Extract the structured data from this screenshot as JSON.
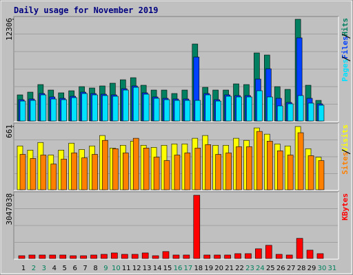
{
  "chart_data": [
    {
      "type": "bar",
      "title": "Daily usage for November 2019",
      "ylim": [
        0,
        12306
      ],
      "yticks": [
        12306
      ],
      "grid": true,
      "series": [
        {
          "name": "Hits",
          "color": "#008060",
          "values": [
            3160,
            3492,
            4407,
            3742,
            3409,
            3659,
            4157,
            3991,
            4241,
            4573,
            4989,
            5238,
            4324,
            3742,
            3742,
            3326,
            3742,
            9313,
            4074,
            3742,
            3742,
            4490,
            4407,
            8232,
            7982,
            4157,
            3825,
            12306,
            4324,
            2494,
            null
          ]
        },
        {
          "name": "Files",
          "color": "#0040ff",
          "values": [
            2578,
            2661,
            3326,
            2910,
            2744,
            2993,
            3492,
            3326,
            3243,
            3160,
            3908,
            4241,
            3409,
            2910,
            2744,
            2661,
            2661,
            7733,
            3326,
            2578,
            3160,
            3077,
            3077,
            5072,
            6319,
            2744,
            2245,
            10061,
            2744,
            2079,
            null
          ]
        },
        {
          "name": "Pages",
          "color": "#00e0ff",
          "values": [
            2411,
            2494,
            3160,
            2661,
            2578,
            2827,
            3326,
            3160,
            3077,
            2993,
            3742,
            4074,
            3243,
            2744,
            2578,
            2494,
            2494,
            2494,
            3160,
            2411,
            2993,
            2910,
            2910,
            3659,
            2910,
            1829,
            2079,
            3077,
            2162,
            1912,
            null
          ]
        }
      ]
    },
    {
      "type": "bar",
      "ylim": [
        0,
        661
      ],
      "yticks": [
        661
      ],
      "grid": true,
      "series": [
        {
          "name": "Visits",
          "color": "#ffff00",
          "values": [
            458,
            414,
            494,
            363,
            414,
            487,
            421,
            458,
            567,
            436,
            465,
            508,
            465,
            443,
            465,
            479,
            479,
            538,
            567,
            465,
            465,
            538,
            516,
            646,
            581,
            479,
            458,
            661,
            429,
            341,
            null
          ]
        },
        {
          "name": "Sites",
          "color": "#ff8000",
          "values": [
            370,
            327,
            363,
            269,
            320,
            385,
            334,
            370,
            516,
            429,
            385,
            538,
            436,
            341,
            305,
            363,
            385,
            436,
            472,
            370,
            385,
            450,
            450,
            610,
            508,
            407,
            363,
            596,
            356,
            305,
            null
          ]
        }
      ]
    },
    {
      "type": "bar",
      "ylim": [
        0,
        3047038
      ],
      "yticks": [
        3047038
      ],
      "grid": true,
      "categories": [
        "1",
        "2",
        "3",
        "4",
        "5",
        "6",
        "7",
        "8",
        "9",
        "10",
        "11",
        "12",
        "13",
        "14",
        "15",
        "16",
        "17",
        "18",
        "19",
        "20",
        "21",
        "22",
        "23",
        "24",
        "25",
        "26",
        "27",
        "28",
        "29",
        "30",
        "31"
      ],
      "category_colors": [
        "#000000",
        "#00805c",
        "#00805c",
        "#000000",
        "#000000",
        "#000000",
        "#000000",
        "#000000",
        "#00805c",
        "#00805c",
        "#000000",
        "#000000",
        "#000000",
        "#000000",
        "#000000",
        "#00805c",
        "#00805c",
        "#000000",
        "#000000",
        "#000000",
        "#000000",
        "#000000",
        "#00805c",
        "#00805c",
        "#000000",
        "#000000",
        "#000000",
        "#000000",
        "#000000",
        "#00805c",
        "#00805c"
      ],
      "series": [
        {
          "name": "KBytes",
          "color": "#ff0000",
          "values": [
            133937,
            167420,
            167420,
            167420,
            167420,
            133937,
            133937,
            167420,
            200904,
            267873,
            200904,
            200904,
            267873,
            133937,
            334841,
            167420,
            167420,
            3047038,
            167420,
            167420,
            167420,
            234389,
            234389,
            468778,
            636198,
            200904,
            167420,
            971040,
            401809,
            234389,
            null
          ]
        }
      ]
    }
  ]
}
